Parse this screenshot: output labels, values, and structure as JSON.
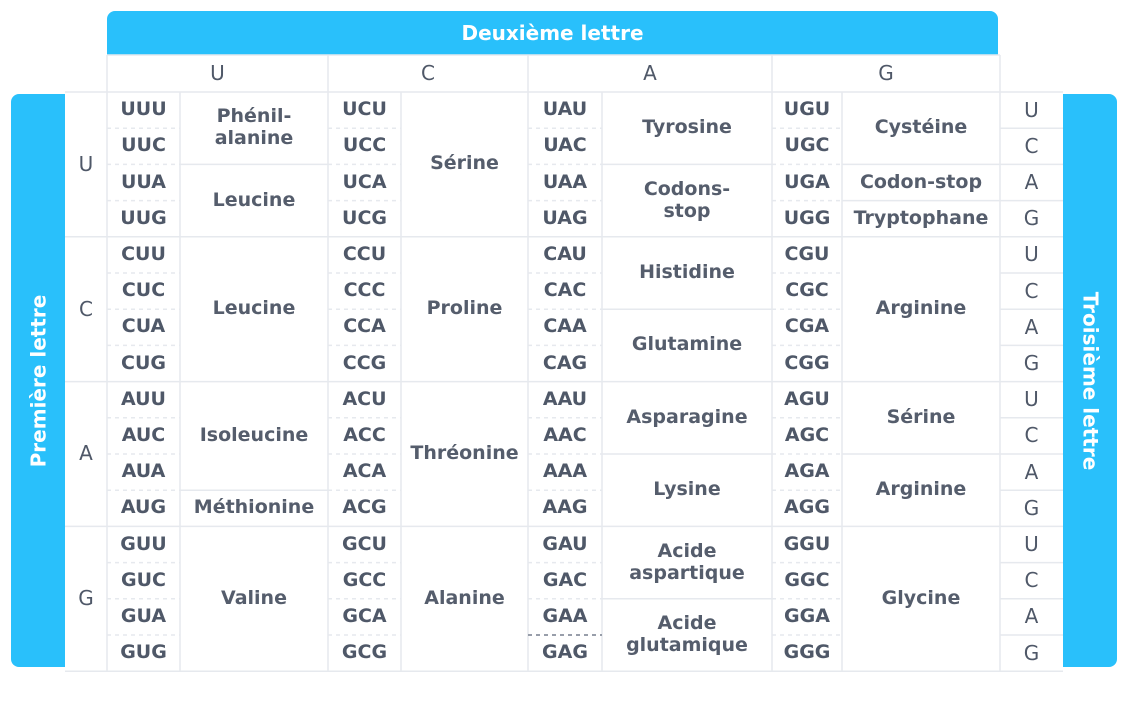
{
  "headers": {
    "second": "Deuxième lettre",
    "first": "Première lettre",
    "third": "Troisième lettre"
  },
  "second_letters": [
    "U",
    "C",
    "A",
    "G"
  ],
  "first_letters": [
    "U",
    "C",
    "A",
    "G"
  ],
  "third_letters": [
    "U",
    "C",
    "A",
    "G",
    "U",
    "C",
    "A",
    "G",
    "U",
    "C",
    "A",
    "G",
    "U",
    "C",
    "A",
    "G"
  ],
  "codons": {
    "U": [
      "UUU",
      "UUC",
      "UUA",
      "UUG",
      "CUU",
      "CUC",
      "CUA",
      "CUG",
      "AUU",
      "AUC",
      "AUA",
      "AUG",
      "GUU",
      "GUC",
      "GUA",
      "GUG"
    ],
    "C": [
      "UCU",
      "UCC",
      "UCA",
      "UCG",
      "CCU",
      "CCC",
      "CCA",
      "CCG",
      "ACU",
      "ACC",
      "ACA",
      "ACG",
      "GCU",
      "GCC",
      "GCA",
      "GCG"
    ],
    "A": [
      "UAU",
      "UAC",
      "UAA",
      "UAG",
      "CAU",
      "CAC",
      "CAA",
      "CAG",
      "AAU",
      "AAC",
      "AAA",
      "AAG",
      "GAU",
      "GAC",
      "GAA",
      "GAG"
    ],
    "G": [
      "UGU",
      "UGC",
      "UGA",
      "UGG",
      "CGU",
      "CGC",
      "CGA",
      "CGG",
      "AGU",
      "AGC",
      "AGA",
      "AGG",
      "GGU",
      "GGC",
      "GGA",
      "GGG"
    ]
  },
  "amino_acids": {
    "U": [
      {
        "name": "Phénil-\nalanine",
        "start": 0,
        "span": 2
      },
      {
        "name": "Leucine",
        "start": 2,
        "span": 2
      },
      {
        "name": "Leucine",
        "start": 4,
        "span": 4
      },
      {
        "name": "Isoleucine",
        "start": 8,
        "span": 3
      },
      {
        "name": "Méthionine",
        "start": 11,
        "span": 1
      },
      {
        "name": "Valine",
        "start": 12,
        "span": 4
      }
    ],
    "C": [
      {
        "name": "Sérine",
        "start": 0,
        "span": 4
      },
      {
        "name": "Proline",
        "start": 4,
        "span": 4
      },
      {
        "name": "Thréonine",
        "start": 8,
        "span": 4
      },
      {
        "name": "Alanine",
        "start": 12,
        "span": 4
      }
    ],
    "A": [
      {
        "name": "Tyrosine",
        "start": 0,
        "span": 2
      },
      {
        "name": "Codons-\nstop",
        "start": 2,
        "span": 2
      },
      {
        "name": "Histidine",
        "start": 4,
        "span": 2
      },
      {
        "name": "Glutamine",
        "start": 6,
        "span": 2
      },
      {
        "name": "Asparagine",
        "start": 8,
        "span": 2
      },
      {
        "name": "Lysine",
        "start": 10,
        "span": 2
      },
      {
        "name": "Acide\naspartique",
        "start": 12,
        "span": 2
      },
      {
        "name": "Acide\nglutamique",
        "start": 14,
        "span": 2
      }
    ],
    "G": [
      {
        "name": "Cystéine",
        "start": 0,
        "span": 2
      },
      {
        "name": "Codon-stop",
        "start": 2,
        "span": 1
      },
      {
        "name": "Tryptophane",
        "start": 3,
        "span": 1
      },
      {
        "name": "Arginine",
        "start": 4,
        "span": 4
      },
      {
        "name": "Sérine",
        "start": 8,
        "span": 2
      },
      {
        "name": "Arginine",
        "start": 10,
        "span": 2
      },
      {
        "name": "Glycine",
        "start": 12,
        "span": 4
      }
    ]
  }
}
